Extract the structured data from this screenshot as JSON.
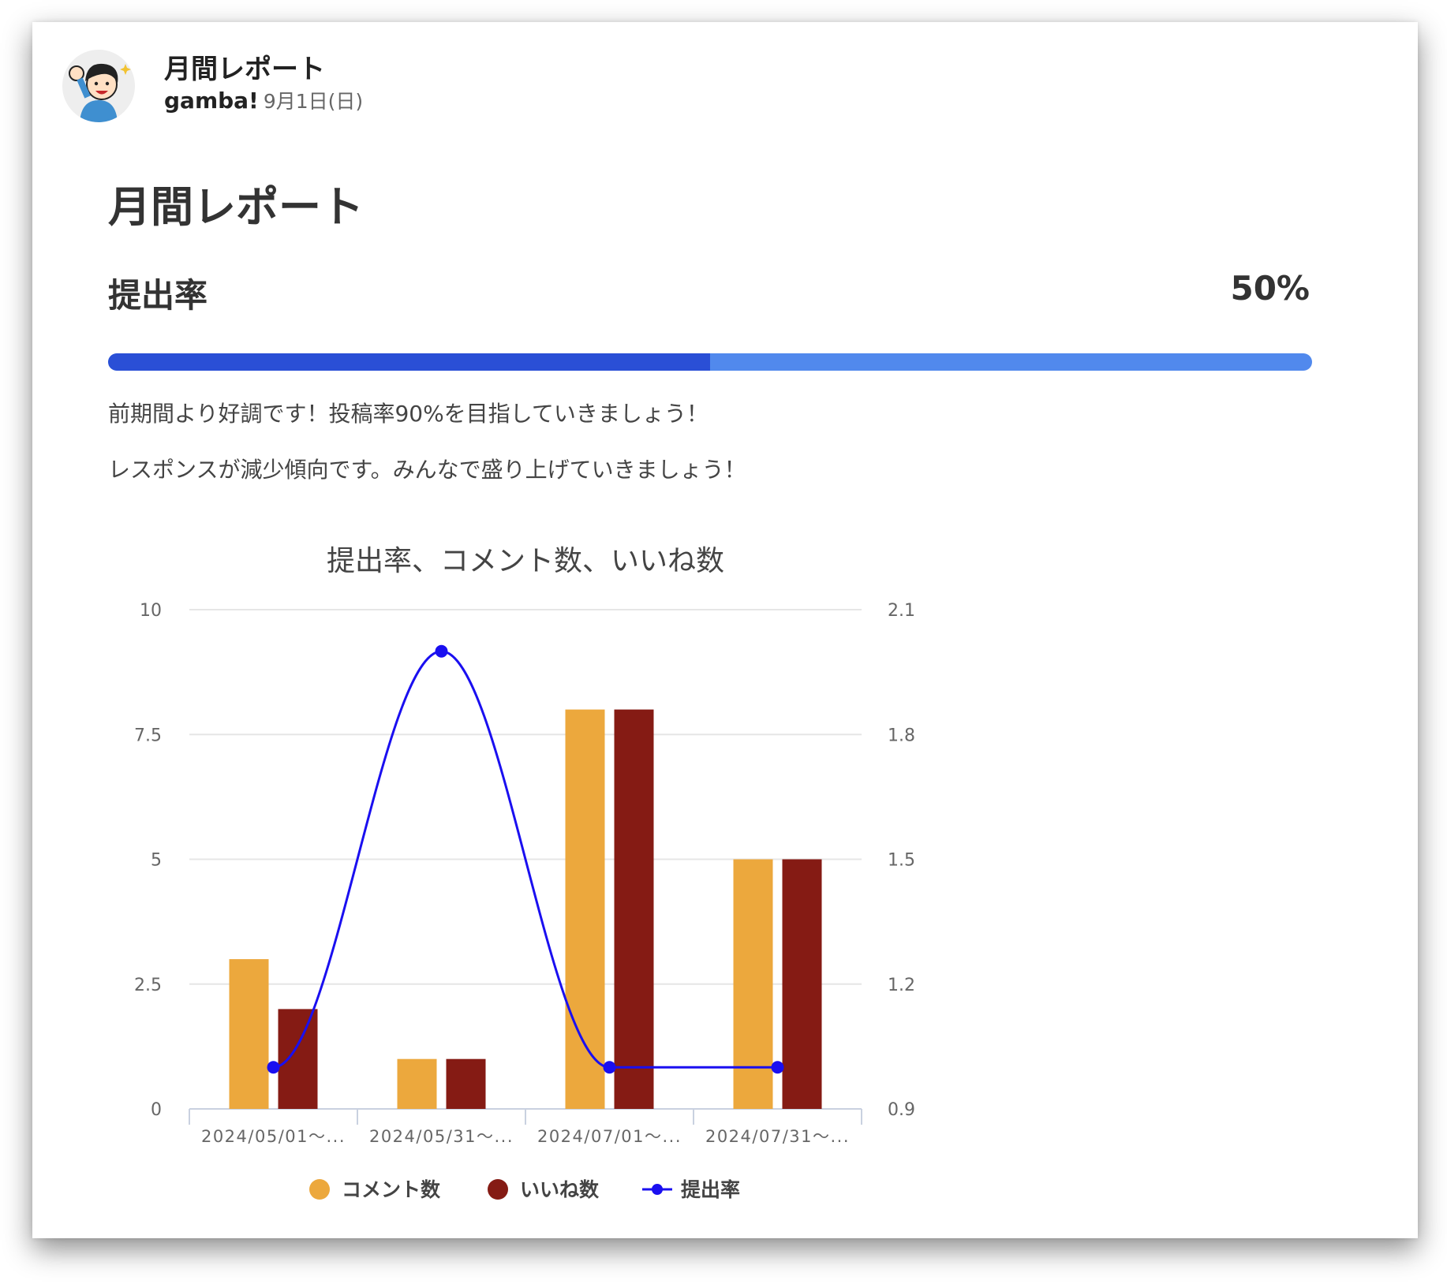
{
  "post": {
    "title": "月間レポート",
    "author": "gamba!",
    "date": "9月1日(日)"
  },
  "report": {
    "heading": "月間レポート",
    "metric_label": "提出率",
    "metric_value_text": "50%",
    "progress_fraction": 0.5,
    "messages": [
      "前期間より好調です！投稿率90%を目指していきましょう！",
      "レスポンスが減少傾向です。みんなで盛り上げていきましょう！"
    ]
  },
  "colors": {
    "progress_fill": "#2a4fd6",
    "progress_track": "#5189ed",
    "comments": "#eca83d",
    "likes": "#851b14",
    "rate": "#1a0ff0"
  },
  "chart_data": {
    "type": "bar",
    "title": "提出率、コメント数、いいね数",
    "categories": [
      "2024/05/01～...",
      "2024/05/31～...",
      "2024/07/01～...",
      "2024/07/31～..."
    ],
    "series": [
      {
        "name": "コメント数",
        "type": "bar",
        "axis": "left",
        "values": [
          3,
          1,
          8,
          5
        ]
      },
      {
        "name": "いいね数",
        "type": "bar",
        "axis": "left",
        "values": [
          2,
          1,
          8,
          5
        ]
      },
      {
        "name": "提出率",
        "type": "line",
        "axis": "right",
        "values": [
          1,
          2,
          1,
          1
        ]
      }
    ],
    "y_left": {
      "min": 0,
      "max": 10,
      "ticks": [
        "0",
        "2.5",
        "5",
        "7.5",
        "10"
      ]
    },
    "y_right": {
      "min": 0.9,
      "max": 2.1,
      "ticks": [
        "0.9",
        "1.2",
        "1.5",
        "1.8",
        "2.1"
      ]
    },
    "grid": true,
    "legend_position": "bottom"
  }
}
